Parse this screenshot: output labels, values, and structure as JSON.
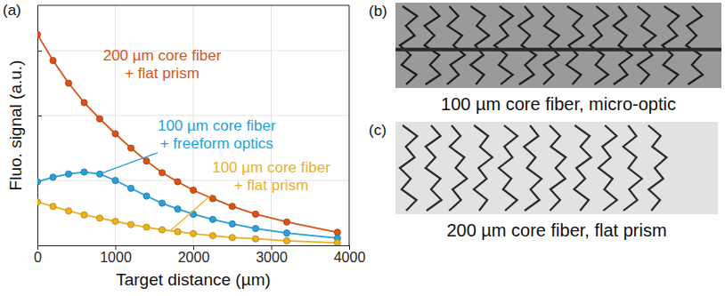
{
  "chart_data": {
    "type": "line",
    "panel_label": "(a)",
    "x_label": "Target distance (µm)",
    "y_label": "Fluo. signal (a.u.)",
    "x": [
      0,
      200,
      400,
      600,
      800,
      1000,
      1200,
      1400,
      1600,
      1800,
      2000,
      2250,
      2500,
      2800,
      3200,
      3850
    ],
    "series": [
      {
        "name": "200 µm core fiber + flat prism",
        "color": "#d95319",
        "marker": "circle",
        "line_style": "solid",
        "values": [
          3.25,
          2.85,
          2.5,
          2.2,
          1.95,
          1.72,
          1.5,
          1.3,
          1.12,
          0.98,
          0.85,
          0.72,
          0.6,
          0.48,
          0.36,
          0.2
        ]
      },
      {
        "name": "100 µm core fiber + freeform optics",
        "color": "#2b9fd9",
        "marker": "circle",
        "line_style": "solid",
        "values": [
          0.98,
          1.05,
          1.1,
          1.13,
          1.1,
          1.0,
          0.88,
          0.76,
          0.65,
          0.56,
          0.48,
          0.4,
          0.33,
          0.26,
          0.19,
          0.11
        ]
      },
      {
        "name": "100 µm core fiber + flat prism",
        "color": "#edb120",
        "marker": "circle",
        "line_style": "solid",
        "values": [
          0.67,
          0.6,
          0.53,
          0.47,
          0.42,
          0.37,
          0.32,
          0.28,
          0.24,
          0.21,
          0.18,
          0.15,
          0.12,
          0.1,
          0.07,
          0.04
        ]
      }
    ],
    "annotations": [
      {
        "text": [
          "200 µm core fiber",
          "+ flat prism"
        ],
        "x": 1600,
        "y": 2.85,
        "color": "#d95319"
      },
      {
        "text": [
          "100 µm core fiber",
          "+ freeform optics"
        ],
        "x": 2300,
        "y": 1.77,
        "color": "#2b9fd9",
        "target": [
          800,
          1.1
        ]
      },
      {
        "text": [
          "100 µm core fiber",
          "+ flat prism"
        ],
        "x": 3000,
        "y": 1.13,
        "color": "#edb120",
        "target": [
          1700,
          0.22
        ]
      }
    ],
    "xlim": [
      0,
      4000
    ],
    "xticks": [
      0,
      1000,
      2000,
      3000,
      4000
    ],
    "ylim": [
      0,
      3.7
    ],
    "yticks": [
      0,
      1,
      2,
      3
    ],
    "grid": true,
    "tick_labels": "x"
  },
  "panels": [
    {
      "label": "(b)",
      "caption": "100 µm core fiber, micro-optic"
    },
    {
      "label": "(c)",
      "caption": "200 µm core fiber, flat prism"
    }
  ]
}
